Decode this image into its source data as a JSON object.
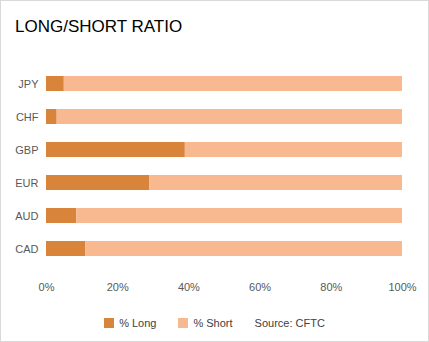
{
  "chart_data": {
    "type": "bar",
    "title": "LONG/SHORT RATIO",
    "orientation": "horizontal",
    "stacked": true,
    "categories": [
      "JPY",
      "CHF",
      "GBP",
      "EUR",
      "AUD",
      "CAD"
    ],
    "series": [
      {
        "name": "% Long",
        "color": "#d9843b",
        "values": [
          5,
          3,
          39,
          29,
          8.5,
          11
        ]
      },
      {
        "name": "% Short",
        "color": "#f8b890",
        "values": [
          95,
          97,
          61,
          71,
          91.5,
          89
        ]
      }
    ],
    "xlim": [
      0,
      100
    ],
    "xticks": [
      {
        "value": 0,
        "label": "0%"
      },
      {
        "value": 20,
        "label": "20%"
      },
      {
        "value": 40,
        "label": "40%"
      },
      {
        "value": 60,
        "label": "60%"
      },
      {
        "value": 80,
        "label": "80%"
      },
      {
        "value": 100,
        "label": "100%"
      }
    ],
    "grid": false,
    "legend": "bottom",
    "annotations": [
      "Source: CFTC"
    ]
  }
}
